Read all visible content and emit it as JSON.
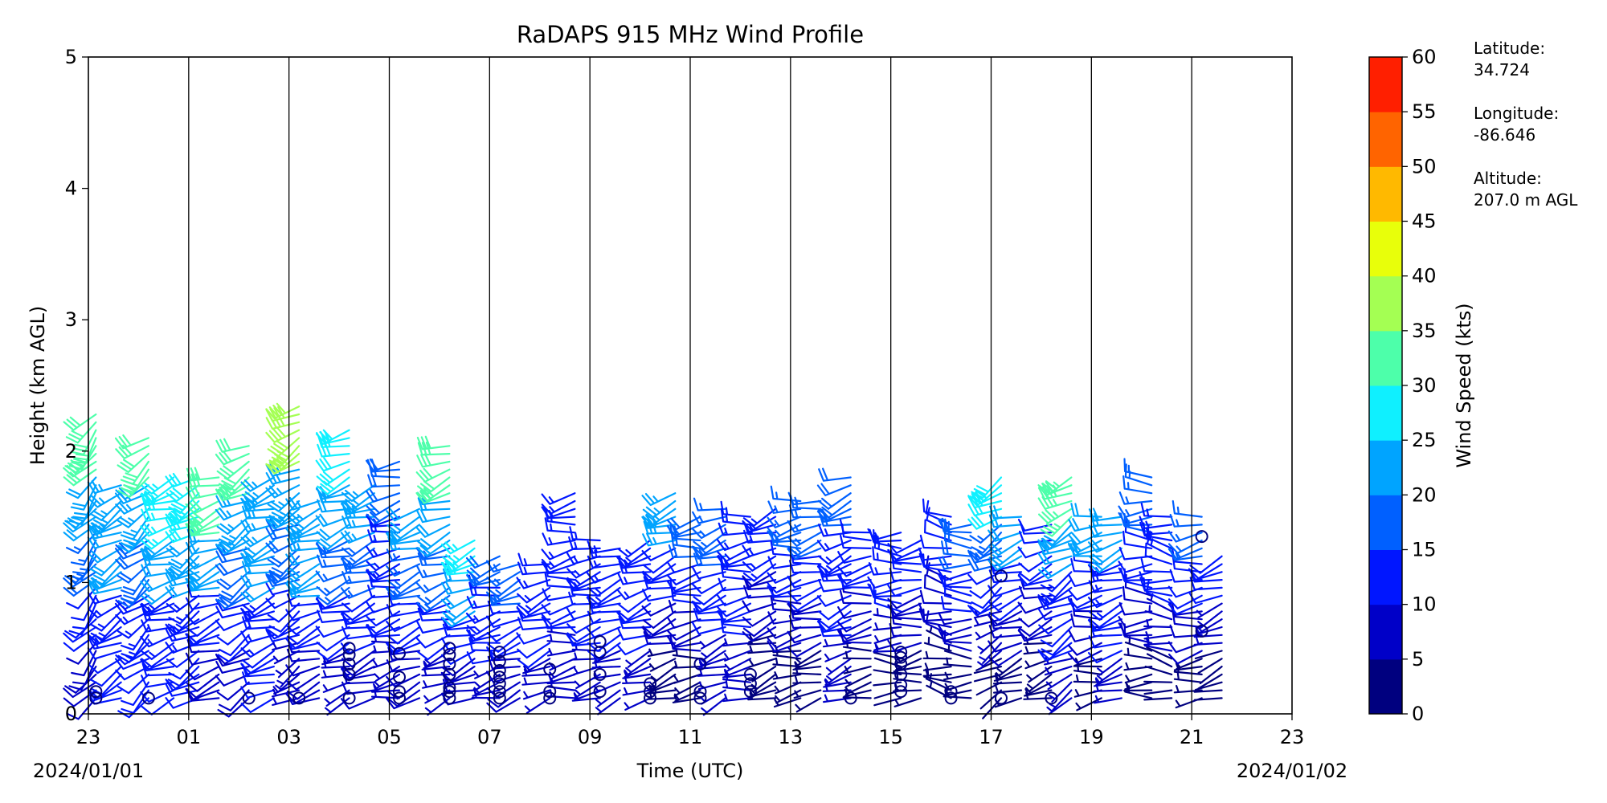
{
  "chart_data": {
    "type": "wind_barbs",
    "title": "RaDAPS 915 MHz Wind Profile",
    "xlabel": "Time (UTC)",
    "ylabel": "Height (km AGL)",
    "x_tick_labels": [
      "23",
      "01",
      "03",
      "05",
      "07",
      "09",
      "11",
      "13",
      "15",
      "17",
      "19",
      "21",
      "23"
    ],
    "x_range_hours": [
      23,
      47
    ],
    "ylim": [
      0,
      5
    ],
    "y_ticks": [
      0,
      1,
      2,
      3,
      4,
      5
    ],
    "date_start": "2024/01/01",
    "date_end": "2024/01/02",
    "grid": "vertical lines at every 2 hours",
    "colorbar": {
      "label": "Wind Speed (kts)",
      "ticks": [
        0,
        5,
        10,
        15,
        20,
        25,
        30,
        35,
        40,
        45,
        50,
        55,
        60
      ],
      "colors": [
        "#00007f",
        "#0000c8",
        "#0016ff",
        "#0060ff",
        "#00a4ff",
        "#0ff0ff",
        "#4dffaa",
        "#a4ff53",
        "#e8ff0a",
        "#ffb900",
        "#ff6400",
        "#ff1f00",
        "#800000"
      ]
    },
    "station": {
      "latitude_label": "Latitude:",
      "latitude": "34.724",
      "longitude_label": "Longitude:",
      "longitude": "-86.646",
      "altitude_label": "Altitude:",
      "altitude": "207.0 m AGL"
    },
    "profiles": [
      {
        "t": 23.15,
        "top": 2.3,
        "spd": [
          8,
          12,
          16,
          22,
          30
        ],
        "dir": 220,
        "calm": [
          0.12,
          0.17
        ]
      },
      {
        "t": 23.65,
        "top": 1.75,
        "spd": [
          10,
          14,
          20,
          24
        ],
        "dir": 240
      },
      {
        "t": 24.2,
        "top": 2.15,
        "spd": [
          10,
          14,
          18,
          24,
          30
        ],
        "dir": 230,
        "calm": [
          0.12
        ]
      },
      {
        "t": 24.7,
        "top": 1.8,
        "spd": [
          10,
          14,
          20,
          26
        ],
        "dir": 250
      },
      {
        "t": 25.2,
        "top": 1.8,
        "spd": [
          10,
          14,
          20,
          28
        ],
        "dir": 240
      },
      {
        "t": 25.6,
        "top": 1.8,
        "spd": [
          8,
          12,
          20,
          30
        ],
        "dir": 250
      },
      {
        "t": 26.2,
        "top": 2.05,
        "spd": [
          8,
          12,
          18,
          24,
          32
        ],
        "dir": 240,
        "calm": [
          0.12
        ]
      },
      {
        "t": 26.7,
        "top": 1.8,
        "spd": [
          10,
          14,
          20,
          24
        ],
        "dir": 250
      },
      {
        "t": 27.2,
        "top": 2.35,
        "spd": [
          6,
          12,
          18,
          24,
          38
        ],
        "dir": 240,
        "calm": [
          0.12
        ]
      },
      {
        "t": 27.6,
        "top": 1.65,
        "spd": [
          8,
          12,
          20,
          24
        ],
        "dir": 250
      },
      {
        "t": 28.2,
        "top": 2.2,
        "spd": [
          6,
          12,
          16,
          22,
          28
        ],
        "dir": 250,
        "calm": [
          0.12,
          0.3,
          0.38,
          0.45,
          0.5
        ]
      },
      {
        "t": 28.7,
        "top": 1.75,
        "spd": [
          8,
          12,
          16,
          24
        ],
        "dir": 250
      },
      {
        "t": 29.2,
        "top": 1.95,
        "spd": [
          6,
          10,
          14,
          18
        ],
        "dir": 255,
        "calm": [
          0.12,
          0.17,
          0.28,
          0.46
        ]
      },
      {
        "t": 29.6,
        "top": 1.6,
        "spd": [
          8,
          12,
          16,
          20
        ],
        "dir": 250
      },
      {
        "t": 30.2,
        "top": 2.05,
        "spd": [
          6,
          12,
          16,
          22,
          30
        ],
        "dir": 250,
        "calm": [
          0.12,
          0.17,
          0.2,
          0.3,
          0.38,
          0.45,
          0.5
        ]
      },
      {
        "t": 30.7,
        "top": 1.35,
        "spd": [
          8,
          12,
          20,
          26
        ],
        "dir": 250
      },
      {
        "t": 31.2,
        "top": 1.25,
        "spd": [
          6,
          10,
          14,
          18
        ],
        "dir": 255,
        "calm": [
          0.12,
          0.17,
          0.23,
          0.28,
          0.33,
          0.4,
          0.47
        ]
      },
      {
        "t": 31.6,
        "top": 1.2,
        "spd": [
          8,
          12,
          16
        ],
        "dir": 250
      },
      {
        "t": 32.2,
        "top": 1.2,
        "spd": [
          6,
          10,
          14
        ],
        "dir": 250,
        "calm": [
          0.12,
          0.17,
          0.34
        ]
      },
      {
        "t": 32.7,
        "top": 1.7,
        "spd": [
          6,
          10,
          14
        ],
        "dir": 260
      },
      {
        "t": 33.2,
        "top": 1.35,
        "spd": [
          6,
          10,
          14
        ],
        "dir": 255,
        "calm": [
          0.17,
          0.3,
          0.47,
          0.55
        ]
      },
      {
        "t": 33.6,
        "top": 1.3,
        "spd": [
          6,
          10,
          14
        ],
        "dir": 250
      },
      {
        "t": 34.2,
        "top": 1.35,
        "spd": [
          6,
          10,
          14
        ],
        "dir": 250,
        "calm": [
          0.12,
          0.17,
          0.23
        ]
      },
      {
        "t": 34.7,
        "top": 1.7,
        "spd": [
          4,
          8,
          12,
          24
        ],
        "dir": 250
      },
      {
        "t": 35.2,
        "top": 1.5,
        "spd": [
          4,
          8,
          12,
          18
        ],
        "dir": 260,
        "calm": [
          0.12,
          0.17,
          0.38
        ]
      },
      {
        "t": 35.7,
        "top": 1.6,
        "spd": [
          6,
          10,
          16
        ],
        "dir": 250
      },
      {
        "t": 36.2,
        "top": 1.55,
        "spd": [
          6,
          10,
          14
        ],
        "dir": 260,
        "calm": [
          0.17,
          0.23,
          0.3
        ]
      },
      {
        "t": 36.7,
        "top": 1.6,
        "spd": [
          4,
          8,
          14
        ],
        "dir": 250
      },
      {
        "t": 37.2,
        "top": 1.65,
        "spd": [
          4,
          8,
          12,
          16
        ],
        "dir": 260
      },
      {
        "t": 37.6,
        "top": 1.65,
        "spd": [
          4,
          8,
          12,
          16
        ],
        "dir": 255
      },
      {
        "t": 38.2,
        "top": 1.85,
        "spd": [
          6,
          10,
          14,
          18
        ],
        "dir": 250,
        "calm": [
          0.12
        ]
      },
      {
        "t": 38.6,
        "top": 1.4,
        "spd": [
          4,
          8,
          12
        ],
        "dir": 260
      },
      {
        "t": 39.2,
        "top": 1.4,
        "spd": [
          2,
          6,
          10,
          14
        ],
        "dir": 270,
        "calm": [
          0.17,
          0.22,
          0.3,
          0.38,
          0.43,
          0.47
        ]
      },
      {
        "t": 39.6,
        "top": 1.35,
        "spd": [
          4,
          8,
          12
        ],
        "dir": 260
      },
      {
        "t": 40.2,
        "top": 1.55,
        "spd": [
          4,
          8,
          12
        ],
        "dir": 280,
        "calm": [
          0.12,
          0.17
        ]
      },
      {
        "t": 40.6,
        "top": 1.45,
        "spd": [
          4,
          8,
          12,
          18
        ],
        "dir": 270
      },
      {
        "t": 41.2,
        "top": 1.8,
        "spd": [
          2,
          6,
          10,
          16,
          28
        ],
        "dir": 240,
        "calm": [
          0.12,
          1.05
        ]
      },
      {
        "t": 41.6,
        "top": 1.5,
        "spd": [
          4,
          8,
          12,
          20
        ],
        "dir": 250
      },
      {
        "t": 42.2,
        "top": 1.45,
        "spd": [
          4,
          8,
          12
        ],
        "dir": 250,
        "calm": [
          0.12
        ]
      },
      {
        "t": 42.6,
        "top": 1.8,
        "spd": [
          6,
          10,
          14,
          22,
          34
        ],
        "dir": 240
      },
      {
        "t": 43.2,
        "top": 1.55,
        "spd": [
          4,
          8,
          12,
          20
        ],
        "dir": 260
      },
      {
        "t": 43.6,
        "top": 1.5,
        "spd": [
          6,
          10,
          14,
          20
        ],
        "dir": 250
      },
      {
        "t": 44.2,
        "top": 1.8,
        "spd": [
          4,
          8,
          12,
          16
        ],
        "dir": 270
      },
      {
        "t": 44.6,
        "top": 1.55,
        "spd": [
          2,
          6,
          10,
          14
        ],
        "dir": 280
      },
      {
        "t": 45.2,
        "top": 1.5,
        "spd": [
          4,
          8,
          12,
          16
        ],
        "dir": 260,
        "calm": [
          0.63,
          1.35
        ]
      },
      {
        "t": 45.6,
        "top": 1.25,
        "spd": [
          2,
          6,
          10
        ],
        "dir": 250
      }
    ]
  }
}
